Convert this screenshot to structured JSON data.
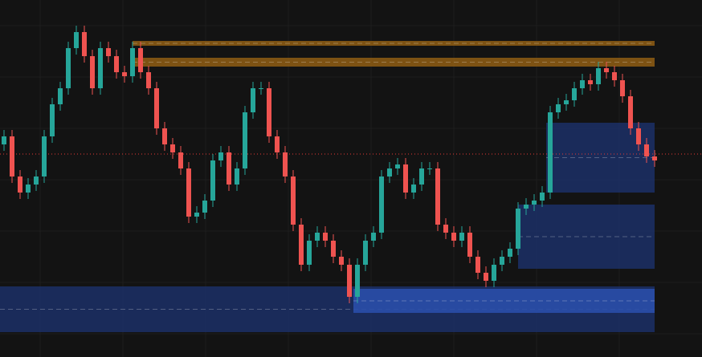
{
  "chart_data": {
    "type": "candlestick",
    "xlim": [
      -0.5,
      81.5
    ],
    "ylim": [
      0,
      445
    ],
    "up_color": "#26a69a",
    "down_color": "#ef5350",
    "open": [
      265,
      275,
      225,
      205,
      215,
      225,
      275,
      315,
      335,
      385,
      405,
      375,
      335,
      385,
      375,
      355,
      350,
      385,
      355,
      335,
      285,
      265,
      255,
      235,
      175,
      180,
      195,
      245,
      255,
      215,
      235,
      305,
      335,
      335,
      275,
      255,
      225,
      165,
      115,
      145,
      155,
      145,
      125,
      115,
      75,
      115,
      145,
      155,
      225,
      235,
      240,
      205,
      215,
      235,
      235,
      165,
      155,
      145,
      155,
      125,
      105,
      95,
      115,
      125,
      135,
      185,
      190,
      195,
      205,
      305,
      315,
      320,
      335,
      345,
      340,
      360,
      355,
      345,
      325,
      285,
      265,
      250
    ],
    "high": [
      283,
      283,
      233,
      223,
      233,
      283,
      323,
      343,
      393,
      413,
      413,
      383,
      393,
      393,
      383,
      363,
      393,
      393,
      363,
      343,
      293,
      273,
      263,
      243,
      188,
      203,
      253,
      263,
      263,
      243,
      313,
      343,
      343,
      343,
      283,
      263,
      233,
      173,
      153,
      163,
      163,
      153,
      133,
      123,
      123,
      153,
      163,
      233,
      243,
      248,
      248,
      223,
      243,
      243,
      243,
      173,
      163,
      163,
      163,
      133,
      113,
      123,
      133,
      143,
      193,
      198,
      203,
      213,
      313,
      323,
      328,
      343,
      353,
      353,
      368,
      368,
      363,
      353,
      333,
      293,
      273,
      258
    ],
    "low": [
      257,
      217,
      197,
      197,
      207,
      217,
      267,
      307,
      327,
      377,
      367,
      327,
      327,
      367,
      347,
      342,
      342,
      347,
      327,
      277,
      257,
      247,
      227,
      167,
      167,
      172,
      187,
      237,
      207,
      207,
      227,
      297,
      327,
      267,
      247,
      217,
      157,
      107,
      107,
      137,
      137,
      117,
      107,
      67,
      67,
      107,
      137,
      147,
      217,
      227,
      197,
      197,
      207,
      227,
      157,
      147,
      137,
      137,
      117,
      97,
      87,
      87,
      107,
      117,
      127,
      177,
      182,
      187,
      197,
      297,
      307,
      312,
      327,
      332,
      332,
      347,
      337,
      317,
      277,
      257,
      242,
      237
    ],
    "close": [
      275,
      225,
      205,
      215,
      225,
      275,
      315,
      335,
      385,
      405,
      375,
      335,
      385,
      375,
      355,
      350,
      385,
      355,
      335,
      285,
      265,
      255,
      235,
      175,
      180,
      195,
      245,
      255,
      215,
      235,
      305,
      335,
      335,
      275,
      255,
      225,
      165,
      115,
      145,
      155,
      145,
      125,
      115,
      75,
      115,
      145,
      155,
      225,
      235,
      240,
      205,
      215,
      235,
      235,
      165,
      155,
      145,
      155,
      125,
      105,
      95,
      115,
      125,
      135,
      185,
      190,
      195,
      205,
      305,
      315,
      320,
      335,
      345,
      340,
      360,
      355,
      345,
      325,
      285,
      265,
      250,
      245
    ],
    "price_line": {
      "value": 253,
      "color": "#e53935"
    },
    "zones": [
      {
        "top": 394,
        "bottom": 388,
        "start": 16,
        "color": "#8a5a14"
      },
      {
        "top": 373,
        "bottom": 362,
        "start": 16,
        "color": "#8a5a14"
      },
      {
        "top": 292,
        "bottom": 205,
        "start": 67.5,
        "color": "#1c2f63"
      },
      {
        "top": 190,
        "bottom": 110,
        "start": 64,
        "color": "#1c2f63"
      },
      {
        "top": 88,
        "bottom": 31,
        "start": -0.5,
        "color": "#1c2f63"
      },
      {
        "top": 85,
        "bottom": 55,
        "start": 43.5,
        "color": "#2a4ea8"
      }
    ]
  }
}
